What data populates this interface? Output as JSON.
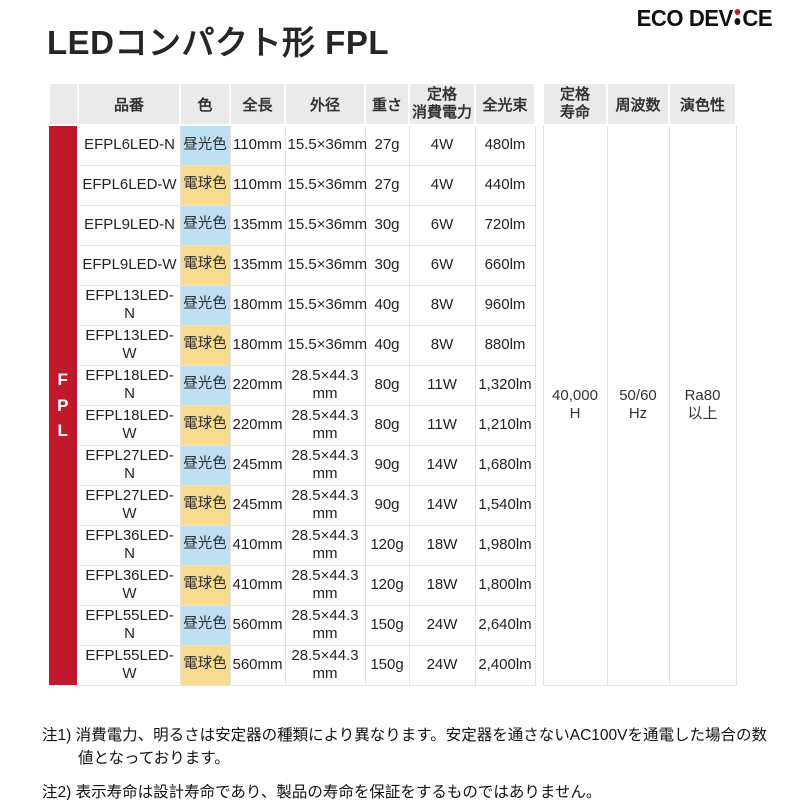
{
  "page": {
    "title": "LEDコンパクト形 FPL"
  },
  "brand": {
    "part1": "ECO",
    "part2": "DEV",
    "part3": "CE",
    "dot_top_color": "#c2182b",
    "dot_bottom_color": "#101010"
  },
  "table": {
    "side_label": "F\nP\nL",
    "headers": {
      "band": "",
      "model": "品番",
      "color": "色",
      "length": "全長",
      "diameter": "外径",
      "weight": "重さ",
      "power": "定格\n消費電力",
      "flux": "全光束",
      "gap": "",
      "life": "定格\n寿命",
      "frequency": "周波数",
      "cri": "演色性"
    },
    "rows": [
      {
        "model": "EFPL6LED-N",
        "color": "昼光色",
        "color_type": "daylight",
        "length": "110mm",
        "diameter": "15.5×36mm",
        "weight": "27g",
        "power": "4W",
        "flux": "480lm"
      },
      {
        "model": "EFPL6LED-W",
        "color": "電球色",
        "color_type": "bulb",
        "length": "110mm",
        "diameter": "15.5×36mm",
        "weight": "27g",
        "power": "4W",
        "flux": "440lm"
      },
      {
        "model": "EFPL9LED-N",
        "color": "昼光色",
        "color_type": "daylight",
        "length": "135mm",
        "diameter": "15.5×36mm",
        "weight": "30g",
        "power": "6W",
        "flux": "720lm"
      },
      {
        "model": "EFPL9LED-W",
        "color": "電球色",
        "color_type": "bulb",
        "length": "135mm",
        "diameter": "15.5×36mm",
        "weight": "30g",
        "power": "6W",
        "flux": "660lm"
      },
      {
        "model": "EFPL13LED-N",
        "color": "昼光色",
        "color_type": "daylight",
        "length": "180mm",
        "diameter": "15.5×36mm",
        "weight": "40g",
        "power": "8W",
        "flux": "960lm"
      },
      {
        "model": "EFPL13LED-W",
        "color": "電球色",
        "color_type": "bulb",
        "length": "180mm",
        "diameter": "15.5×36mm",
        "weight": "40g",
        "power": "8W",
        "flux": "880lm"
      },
      {
        "model": "EFPL18LED-N",
        "color": "昼光色",
        "color_type": "daylight",
        "length": "220mm",
        "diameter": "28.5×44.3\nmm",
        "weight": "80g",
        "power": "11W",
        "flux": "1,320lm"
      },
      {
        "model": "EFPL18LED-W",
        "color": "電球色",
        "color_type": "bulb",
        "length": "220mm",
        "diameter": "28.5×44.3\nmm",
        "weight": "80g",
        "power": "11W",
        "flux": "1,210lm"
      },
      {
        "model": "EFPL27LED-N",
        "color": "昼光色",
        "color_type": "daylight",
        "length": "245mm",
        "diameter": "28.5×44.3\nmm",
        "weight": "90g",
        "power": "14W",
        "flux": "1,680lm"
      },
      {
        "model": "EFPL27LED-W",
        "color": "電球色",
        "color_type": "bulb",
        "length": "245mm",
        "diameter": "28.5×44.3\nmm",
        "weight": "90g",
        "power": "14W",
        "flux": "1,540lm"
      },
      {
        "model": "EFPL36LED-N",
        "color": "昼光色",
        "color_type": "daylight",
        "length": "410mm",
        "diameter": "28.5×44.3\nmm",
        "weight": "120g",
        "power": "18W",
        "flux": "1,980lm"
      },
      {
        "model": "EFPL36LED-W",
        "color": "電球色",
        "color_type": "bulb",
        "length": "410mm",
        "diameter": "28.5×44.3\nmm",
        "weight": "120g",
        "power": "18W",
        "flux": "1,800lm"
      },
      {
        "model": "EFPL55LED-N",
        "color": "昼光色",
        "color_type": "daylight",
        "length": "560mm",
        "diameter": "28.5×44.3\nmm",
        "weight": "150g",
        "power": "24W",
        "flux": "2,640lm"
      },
      {
        "model": "EFPL55LED-W",
        "color": "電球色",
        "color_type": "bulb",
        "length": "560mm",
        "diameter": "28.5×44.3\nmm",
        "weight": "150g",
        "power": "24W",
        "flux": "2,400lm"
      }
    ],
    "merged": {
      "life": "40,000\nH",
      "frequency": "50/60\nHz",
      "cri": "Ra80\n以上"
    }
  },
  "notes": [
    "注1) 消費電力、明るさは安定器の種類により異なります。安定器を通さないAC100Vを通電した場合の数値となっております。",
    "注2) 表示寿命は設計寿命であり、製品の寿命を保証をするものではありません。"
  ],
  "colors": {
    "accent_red": "#c2182b",
    "daylight_blue": "#bfe0f2",
    "bulb_yellow": "#f7db8f",
    "header_gray": "#eaeaea"
  }
}
